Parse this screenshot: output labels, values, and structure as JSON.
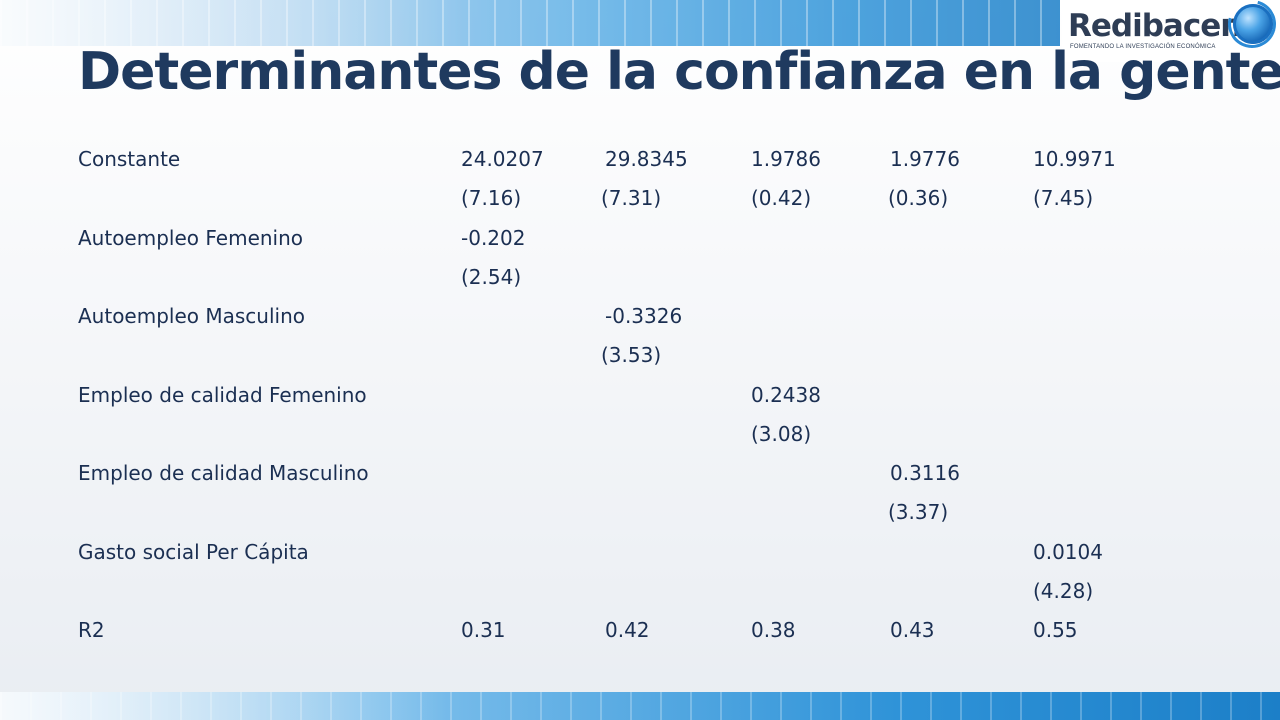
{
  "logo": {
    "name": "Redibacen",
    "tagline": "FOMENTANDO LA INVESTIGACIÓN ECONÓMICA"
  },
  "slide": {
    "title": "Determinantes de la confianza en la gente"
  },
  "table": {
    "rows": [
      {
        "label": "Constante",
        "values": [
          "24.0207",
          "29.8345",
          "1.9786",
          "1.9776",
          "10.9971"
        ],
        "tstats": [
          "(7.16)",
          "(7.31)",
          "(0.42)",
          "(0.36)",
          "(7.45)"
        ]
      },
      {
        "label": "Autoempleo Femenino",
        "values": [
          "-0.202",
          "",
          "",
          "",
          ""
        ],
        "tstats": [
          "(2.54)",
          "",
          "",
          "",
          ""
        ]
      },
      {
        "label": "Autoempleo Masculino",
        "values": [
          "",
          "-0.3326",
          "",
          "",
          ""
        ],
        "tstats": [
          "",
          "(3.53)",
          "",
          "",
          ""
        ]
      },
      {
        "label": "Empleo de calidad Femenino",
        "values": [
          "",
          "",
          "0.2438",
          "",
          ""
        ],
        "tstats": [
          "",
          "",
          "(3.08)",
          "",
          ""
        ]
      },
      {
        "label": "Empleo de calidad Masculino",
        "values": [
          "",
          "",
          "",
          "0.3116",
          ""
        ],
        "tstats": [
          "",
          "",
          "",
          "(3.37)",
          ""
        ]
      },
      {
        "label": "Gasto social Per Cápita",
        "values": [
          "",
          "",
          "",
          "",
          "0.0104"
        ],
        "tstats": [
          "",
          "",
          "",
          "",
          "(4.28)"
        ]
      },
      {
        "label": "R2",
        "values": [
          "0.31",
          "0.42",
          "0.38",
          "0.43",
          "0.55"
        ],
        "tstats": [
          "",
          "",
          "",
          "",
          ""
        ]
      }
    ]
  }
}
